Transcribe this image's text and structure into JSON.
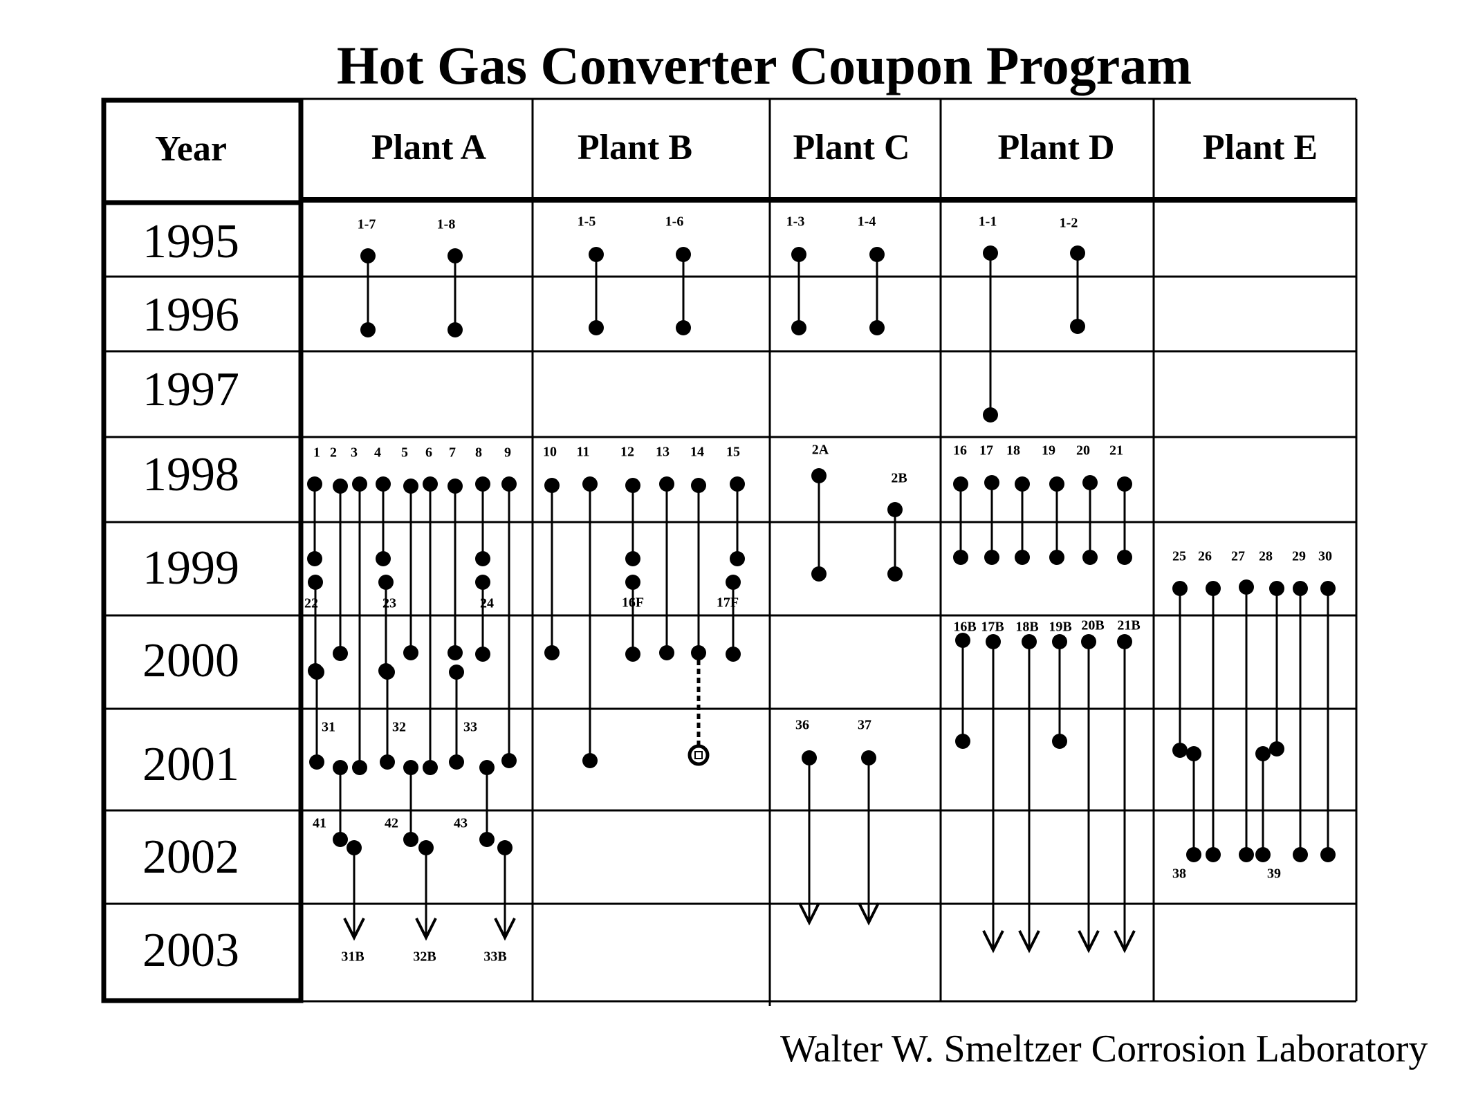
{
  "title": "Hot Gas Converter Coupon Program",
  "footer": "Walter W. Smeltzer Corrosion Laboratory",
  "table": {
    "year_header": "Year",
    "plants": [
      "Plant A",
      "Plant B",
      "Plant C",
      "Plant D",
      "Plant E"
    ],
    "years": [
      "1995",
      "1996",
      "1997",
      "1998",
      "1999",
      "2000",
      "2001",
      "2002",
      "2003"
    ]
  },
  "coupons": [
    {
      "label": "1-7",
      "plant": "Plant A",
      "start": "1995",
      "end": "1996"
    },
    {
      "label": "1-8",
      "plant": "Plant A",
      "start": "1995",
      "end": "1996"
    },
    {
      "label": "1-5",
      "plant": "Plant B",
      "start": "1995",
      "end": "1996"
    },
    {
      "label": "1-6",
      "plant": "Plant B",
      "start": "1995",
      "end": "1996"
    },
    {
      "label": "1-3",
      "plant": "Plant C",
      "start": "1995",
      "end": "1996"
    },
    {
      "label": "1-4",
      "plant": "Plant C",
      "start": "1995",
      "end": "1996"
    },
    {
      "label": "1-1",
      "plant": "Plant D",
      "start": "1995",
      "end": "1997"
    },
    {
      "label": "1-2",
      "plant": "Plant D",
      "start": "1995",
      "end": "1996"
    },
    {
      "label": "1",
      "plant": "Plant A",
      "start": "1998",
      "end": "1999"
    },
    {
      "label": "2",
      "plant": "Plant A",
      "start": "1998",
      "end": "2000"
    },
    {
      "label": "3",
      "plant": "Plant A",
      "start": "1998",
      "end": "2001"
    },
    {
      "label": "4",
      "plant": "Plant A",
      "start": "1998",
      "end": "1999"
    },
    {
      "label": "5",
      "plant": "Plant A",
      "start": "1998",
      "end": "2000"
    },
    {
      "label": "6",
      "plant": "Plant A",
      "start": "1998",
      "end": "2001"
    },
    {
      "label": "7",
      "plant": "Plant A",
      "start": "1998",
      "end": "2000"
    },
    {
      "label": "8",
      "plant": "Plant A",
      "start": "1998",
      "end": "1999"
    },
    {
      "label": "9",
      "plant": "Plant A",
      "start": "1998",
      "end": "2001"
    },
    {
      "label": "22",
      "plant": "Plant A",
      "start": "1999",
      "end": "2000"
    },
    {
      "label": "23",
      "plant": "Plant A",
      "start": "1999",
      "end": "2000"
    },
    {
      "label": "24",
      "plant": "Plant A",
      "start": "1999",
      "end": "2000"
    },
    {
      "label": "31",
      "plant": "Plant A",
      "start": "2000",
      "end": "2001"
    },
    {
      "label": "32",
      "plant": "Plant A",
      "start": "2000",
      "end": "2001"
    },
    {
      "label": "33",
      "plant": "Plant A",
      "start": "2000",
      "end": "2001"
    },
    {
      "label": "41",
      "plant": "Plant A",
      "start": "2001",
      "end": "2002"
    },
    {
      "label": "42",
      "plant": "Plant A",
      "start": "2001",
      "end": "2002"
    },
    {
      "label": "43",
      "plant": "Plant A",
      "start": "2001",
      "end": "2002"
    },
    {
      "label": "31B",
      "plant": "Plant A",
      "start": "2002",
      "end": "2003"
    },
    {
      "label": "32B",
      "plant": "Plant A",
      "start": "2002",
      "end": "2003"
    },
    {
      "label": "33B",
      "plant": "Plant A",
      "start": "2002",
      "end": "2003"
    },
    {
      "label": "10",
      "plant": "Plant B",
      "start": "1998",
      "end": "2000"
    },
    {
      "label": "11",
      "plant": "Plant B",
      "start": "1998",
      "end": "2001"
    },
    {
      "label": "12",
      "plant": "Plant B",
      "start": "1998",
      "end": "1999"
    },
    {
      "label": "13",
      "plant": "Plant B",
      "start": "1998",
      "end": "2000"
    },
    {
      "label": "14",
      "plant": "Plant B",
      "start": "1998",
      "end": "2001"
    },
    {
      "label": "15",
      "plant": "Plant B",
      "start": "1998",
      "end": "1999"
    },
    {
      "label": "16F",
      "plant": "Plant B",
      "start": "1999",
      "end": "2000"
    },
    {
      "label": "17F",
      "plant": "Plant B",
      "start": "1999",
      "end": "2000"
    },
    {
      "label": "2A",
      "plant": "Plant C",
      "start": "1998",
      "end": "1999"
    },
    {
      "label": "2B",
      "plant": "Plant C",
      "start": "1998",
      "end": "1999"
    },
    {
      "label": "36",
      "plant": "Plant C",
      "start": "2001",
      "end": "2003"
    },
    {
      "label": "37",
      "plant": "Plant C",
      "start": "2001",
      "end": "2003"
    },
    {
      "label": "16",
      "plant": "Plant D",
      "start": "1998",
      "end": "1999"
    },
    {
      "label": "17",
      "plant": "Plant D",
      "start": "1998",
      "end": "1999"
    },
    {
      "label": "18",
      "plant": "Plant D",
      "start": "1998",
      "end": "1999"
    },
    {
      "label": "19",
      "plant": "Plant D",
      "start": "1998",
      "end": "1999"
    },
    {
      "label": "20",
      "plant": "Plant D",
      "start": "1998",
      "end": "1999"
    },
    {
      "label": "21",
      "plant": "Plant D",
      "start": "1998",
      "end": "1999"
    },
    {
      "label": "16B",
      "plant": "Plant D",
      "start": "2000",
      "end": "2001"
    },
    {
      "label": "17B",
      "plant": "Plant D",
      "start": "2000",
      "end": "2003"
    },
    {
      "label": "18B",
      "plant": "Plant D",
      "start": "2000",
      "end": "2003"
    },
    {
      "label": "19B",
      "plant": "Plant D",
      "start": "2000",
      "end": "2001"
    },
    {
      "label": "20B",
      "plant": "Plant D",
      "start": "2000",
      "end": "2003"
    },
    {
      "label": "21B",
      "plant": "Plant D",
      "start": "2000",
      "end": "2003"
    },
    {
      "label": "25",
      "plant": "Plant E",
      "start": "1999",
      "end": "2001"
    },
    {
      "label": "26",
      "plant": "Plant E",
      "start": "1999",
      "end": "2002"
    },
    {
      "label": "27",
      "plant": "Plant E",
      "start": "1999",
      "end": "2002"
    },
    {
      "label": "28",
      "plant": "Plant E",
      "start": "1999",
      "end": "2001"
    },
    {
      "label": "29",
      "plant": "Plant E",
      "start": "1999",
      "end": "2002"
    },
    {
      "label": "30",
      "plant": "Plant E",
      "start": "1999",
      "end": "2002"
    },
    {
      "label": "38",
      "plant": "Plant E",
      "start": "2001",
      "end": "2002"
    },
    {
      "label": "39",
      "plant": "Plant E",
      "start": "2001",
      "end": "2002"
    }
  ]
}
